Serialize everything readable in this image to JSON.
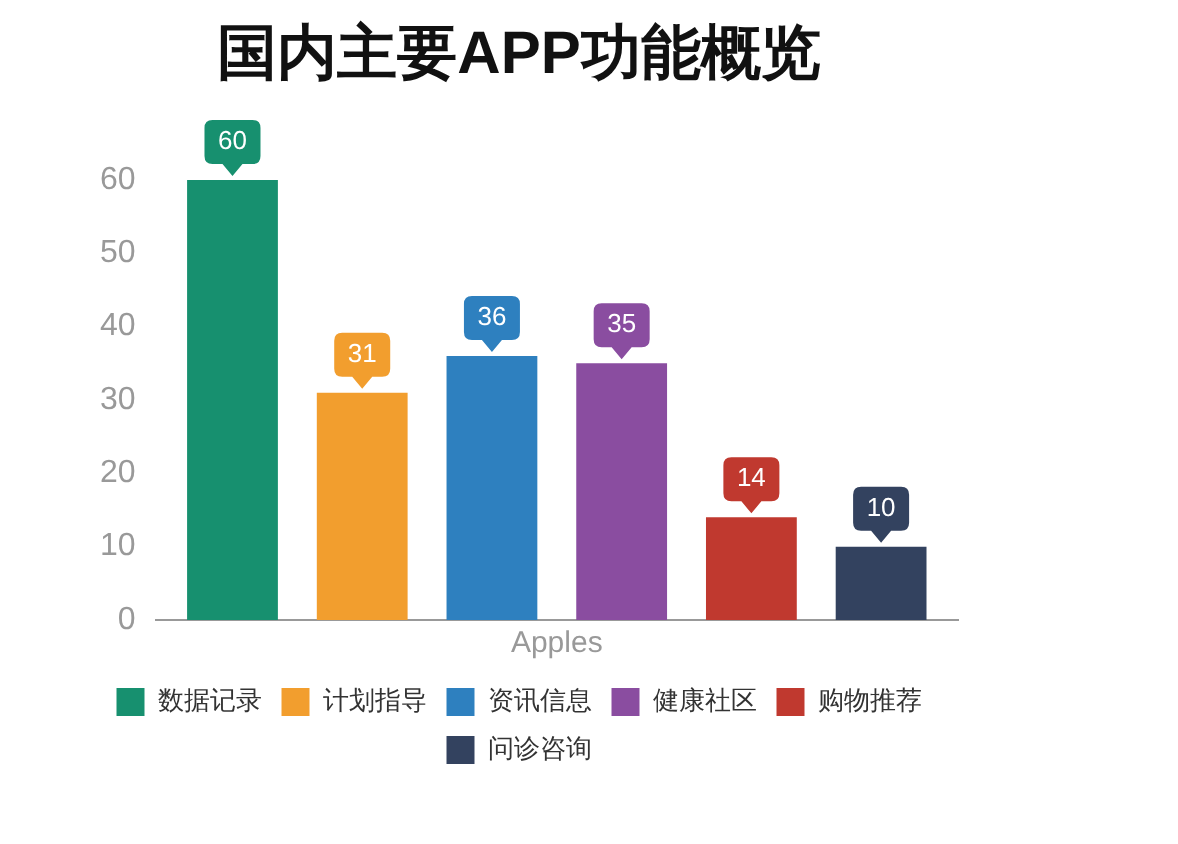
{
  "chart_data": {
    "type": "bar",
    "title": "国内主要APP功能概览",
    "categories": [
      "Apples"
    ],
    "series": [
      {
        "name": "数据记录",
        "color": "#17906f",
        "values": [
          60
        ]
      },
      {
        "name": "计划指导",
        "color": "#f29e2e",
        "values": [
          31
        ]
      },
      {
        "name": "资讯信息",
        "color": "#2e80bf",
        "values": [
          36
        ]
      },
      {
        "name": "健康社区",
        "color": "#8a4da0",
        "values": [
          35
        ]
      },
      {
        "name": "购物推荐",
        "color": "#c0392f",
        "values": [
          14
        ]
      },
      {
        "name": "问诊咨询",
        "color": "#33425f",
        "values": [
          10
        ]
      }
    ],
    "ylim": [
      0,
      60
    ],
    "yticks": [
      0,
      10,
      20,
      30,
      40,
      50,
      60
    ],
    "grid": false,
    "legend": "bottom",
    "data_labels": true
  }
}
